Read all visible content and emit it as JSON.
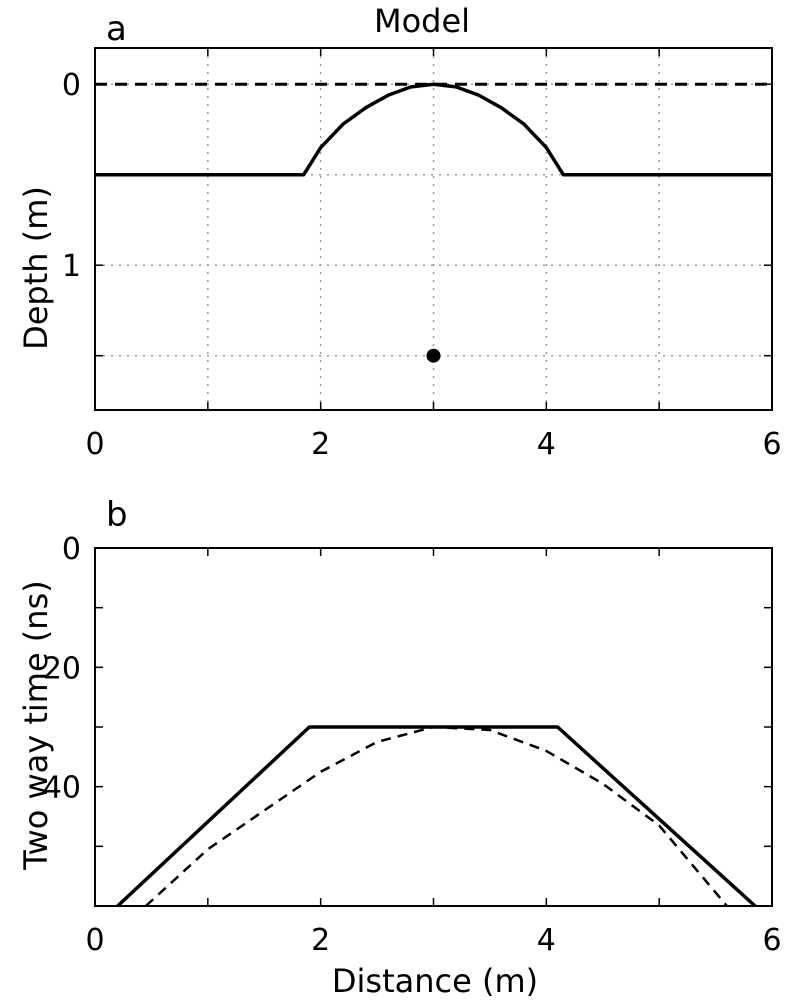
{
  "chart_data": [
    {
      "panel": "a",
      "type": "line",
      "title": "Model",
      "xlabel": "",
      "ylabel": "Depth (m)",
      "xlim": [
        0,
        6
      ],
      "ylim": [
        1.8,
        -0.2
      ],
      "y_inverted": true,
      "x_ticks": [
        0,
        2,
        4,
        6
      ],
      "x_tick_labels": [
        "0",
        "2",
        "4",
        "6"
      ],
      "y_ticks": [
        0,
        1
      ],
      "y_tick_labels": [
        "0",
        "1"
      ],
      "grid": true,
      "grid_x": [
        1,
        2,
        3,
        4,
        5
      ],
      "grid_y": [
        0,
        0.5,
        1,
        1.5
      ],
      "reference_lines": [
        {
          "y": 0,
          "style": "dashed",
          "color": "#000000"
        }
      ],
      "series": [
        {
          "style": "solid",
          "color": "#000000",
          "x": [
            0,
            1.85,
            2.0,
            2.2,
            2.4,
            2.6,
            2.8,
            3.0,
            3.2,
            3.4,
            3.6,
            3.8,
            4.0,
            4.15,
            6
          ],
          "y": [
            0.5,
            0.5,
            0.35,
            0.22,
            0.13,
            0.06,
            0.015,
            0.0,
            0.015,
            0.06,
            0.13,
            0.22,
            0.35,
            0.5,
            0.5
          ]
        }
      ],
      "points": [
        {
          "x": 3.0,
          "y": 1.5,
          "marker": "filled-circle",
          "color": "#000000"
        }
      ]
    },
    {
      "panel": "b",
      "type": "line",
      "title": "",
      "xlabel": "Distance (m)",
      "ylabel": "Two way time (ns)",
      "xlim": [
        0,
        6
      ],
      "ylim": [
        60,
        0
      ],
      "y_inverted": true,
      "x_ticks": [
        0,
        2,
        4,
        6
      ],
      "x_tick_labels": [
        "0",
        "2",
        "4",
        "6"
      ],
      "y_ticks": [
        0,
        20,
        40
      ],
      "y_tick_labels": [
        "0",
        "20",
        "40"
      ],
      "grid": false,
      "series": [
        {
          "style": "solid",
          "color": "#000000",
          "x": [
            0.2,
            1.9,
            4.1,
            5.85
          ],
          "y": [
            60,
            30,
            30,
            60
          ]
        },
        {
          "style": "dashed",
          "color": "#000000",
          "x": [
            0.45,
            1.0,
            1.5,
            2.0,
            2.5,
            3.0,
            3.5,
            4.0,
            4.5,
            5.0,
            5.6
          ],
          "y": [
            60,
            50.5,
            44.0,
            37.5,
            32.5,
            30.0,
            30.5,
            34.0,
            39.5,
            46.5,
            60
          ]
        }
      ]
    }
  ]
}
